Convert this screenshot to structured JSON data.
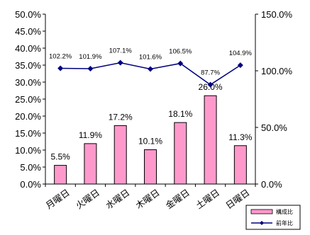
{
  "chart_data": {
    "type": "bar",
    "categories": [
      "月曜日",
      "火曜日",
      "水曜日",
      "木曜日",
      "金曜日",
      "土曜日",
      "日曜日"
    ],
    "series": [
      {
        "name": "構成比",
        "type": "bar",
        "axis": "left",
        "values": [
          5.5,
          11.9,
          17.2,
          10.1,
          18.1,
          26.0,
          11.3
        ],
        "labels": [
          "5.5%",
          "11.9%",
          "17.2%",
          "10.1%",
          "18.1%",
          "26.0%",
          "11.3%"
        ],
        "color": "#ff99cc"
      },
      {
        "name": "前年比",
        "type": "line",
        "axis": "right",
        "values": [
          102.2,
          101.9,
          107.1,
          101.6,
          106.5,
          87.7,
          104.9
        ],
        "labels": [
          "102.2%",
          "101.9%",
          "107.1%",
          "101.6%",
          "106.5%",
          "87.7%",
          "104.9%"
        ],
        "color": "#000080"
      }
    ],
    "y_left": {
      "range": [
        0,
        50
      ],
      "ticks": [
        "0.0%",
        "5.0%",
        "10.0%",
        "15.0%",
        "20.0%",
        "25.0%",
        "30.0%",
        "35.0%",
        "40.0%",
        "45.0%",
        "50.0%"
      ]
    },
    "y_right": {
      "range": [
        0,
        150
      ],
      "ticks": [
        "0.0%",
        "50.0%",
        "100.0%",
        "150.0%"
      ]
    },
    "legend_position": "bottom-right",
    "grid": false
  }
}
